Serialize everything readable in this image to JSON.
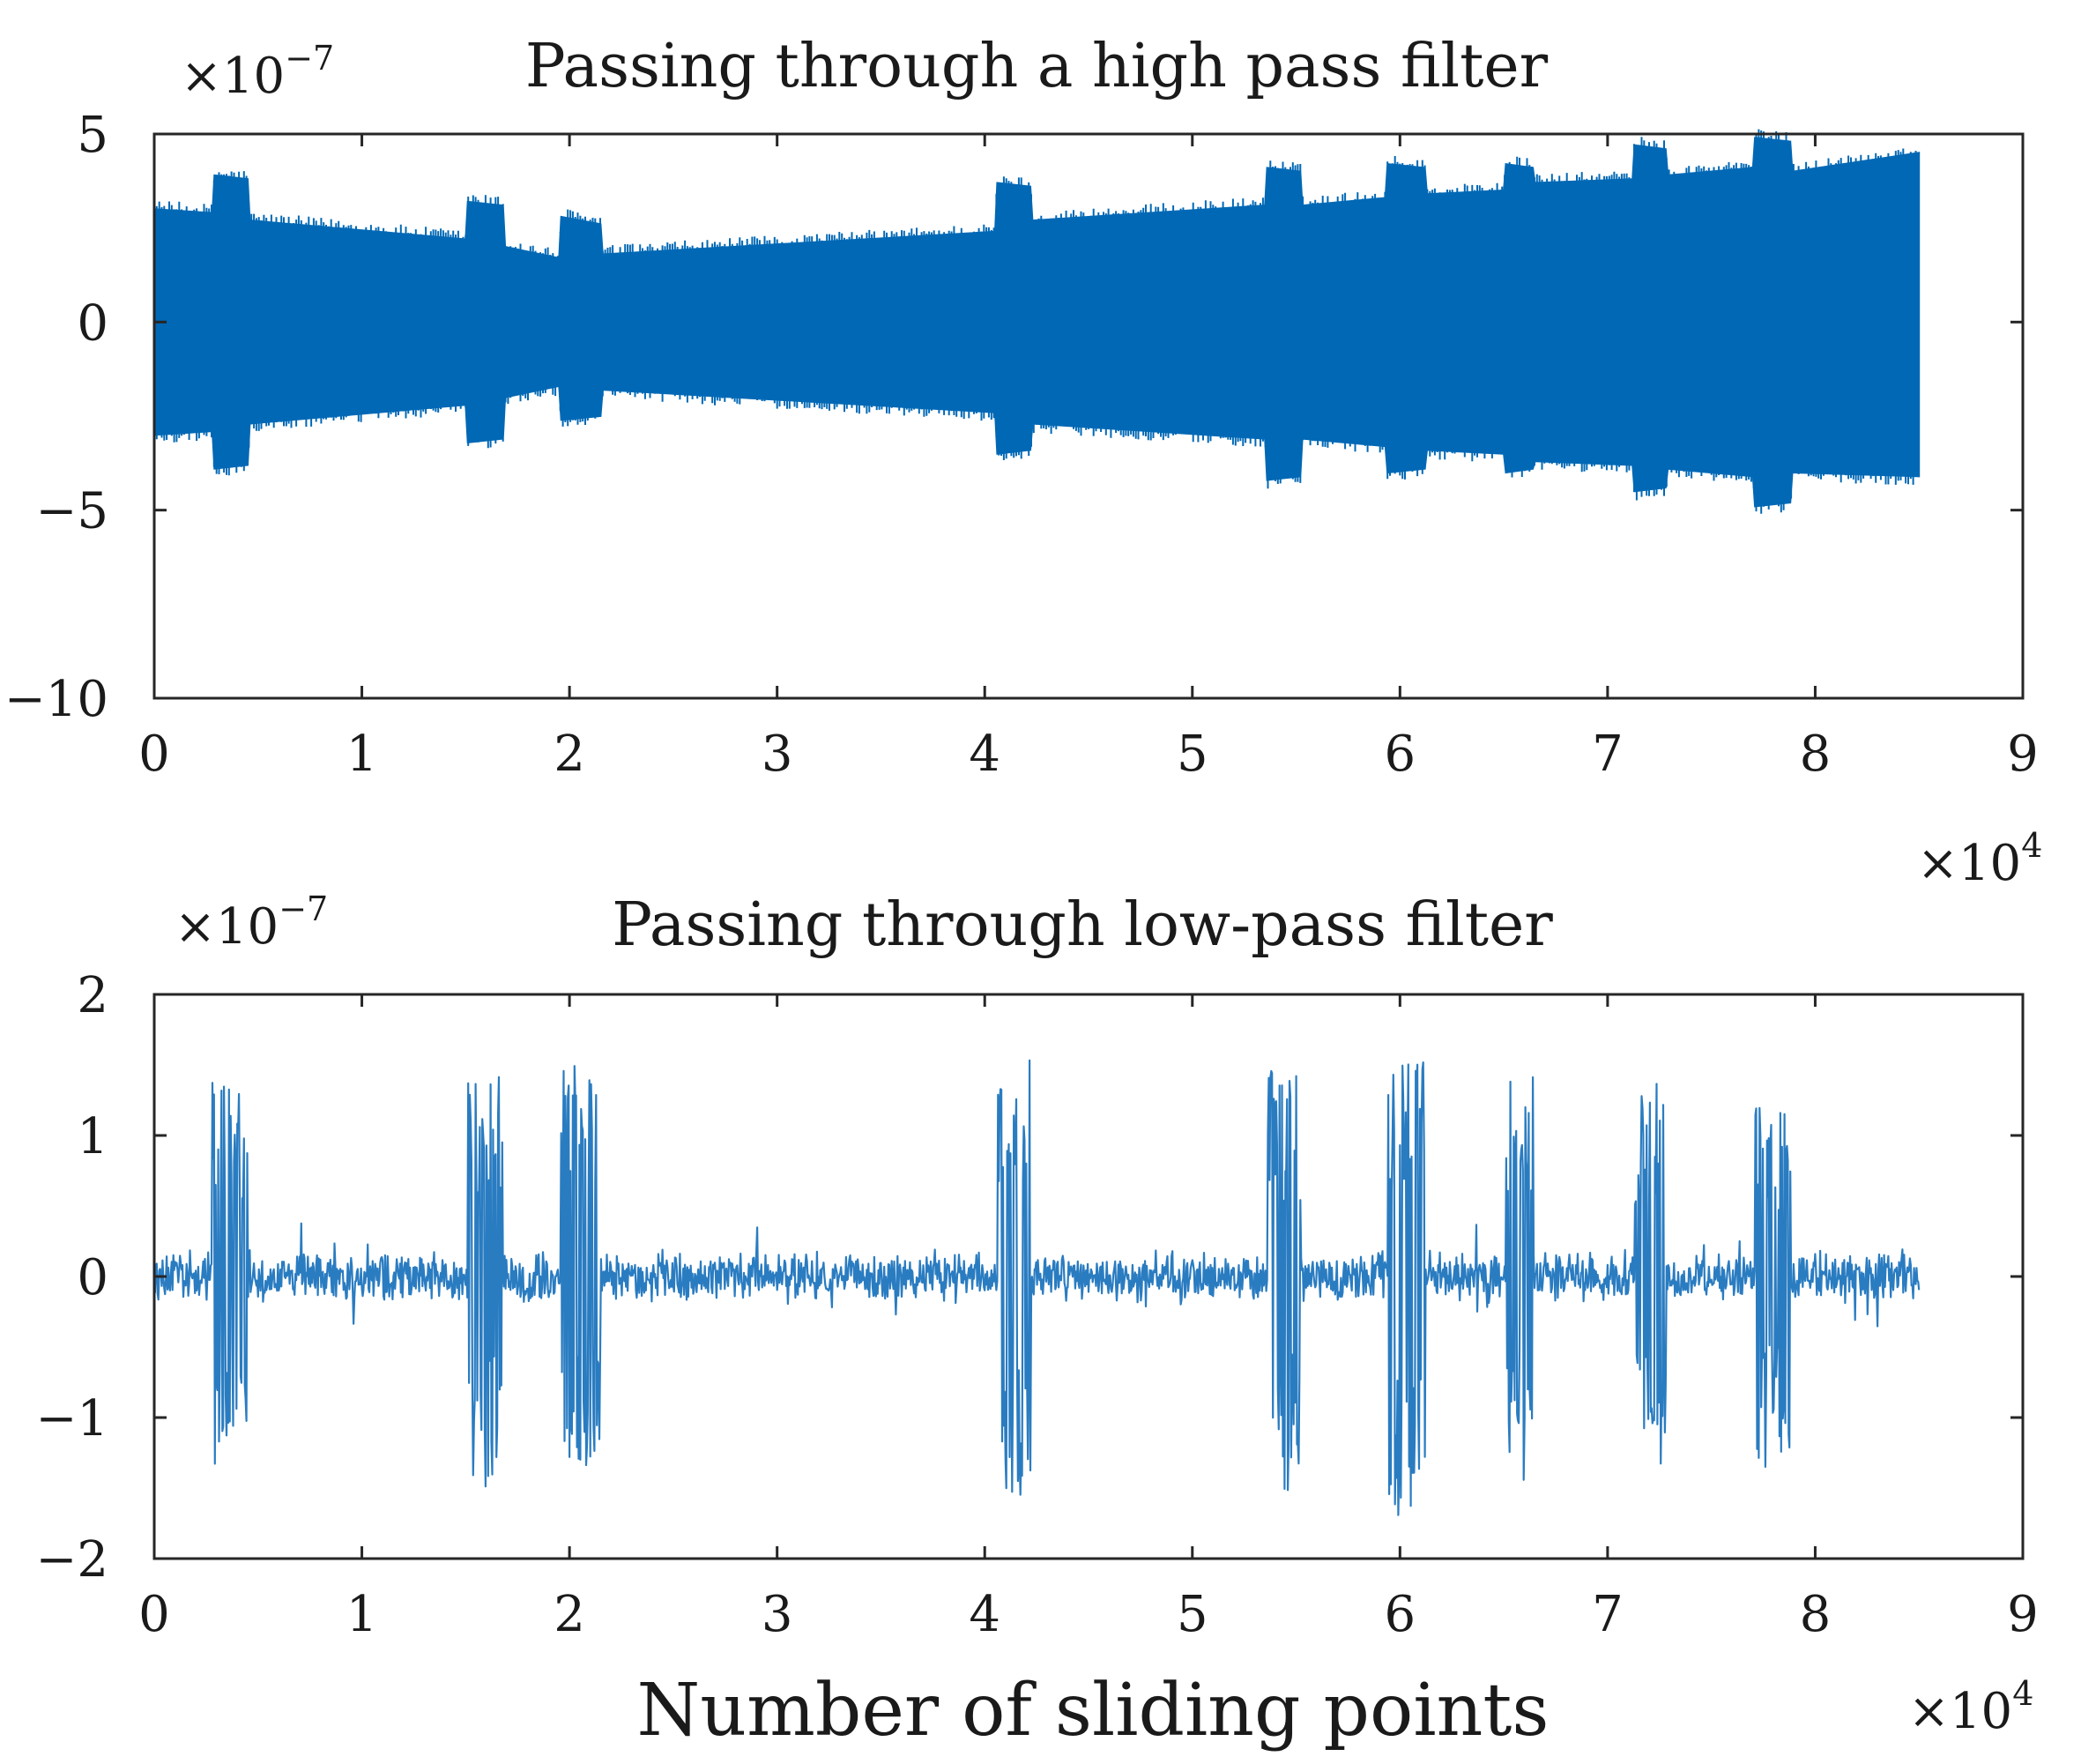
{
  "chart_data": [
    {
      "type": "area",
      "title": "Passing through a high pass filter",
      "y_multiplier": {
        "base": "×10",
        "exp": "−7"
      },
      "x_multiplier": {
        "base": "×10",
        "exp": "4"
      },
      "xlim": [
        0,
        9
      ],
      "ylim": [
        -10,
        5
      ],
      "x_ticks": [
        0,
        1,
        2,
        3,
        4,
        5,
        6,
        7,
        8,
        9
      ],
      "y_ticks": [
        5,
        0,
        -5,
        -10
      ],
      "x_tick_labels": [
        "0",
        "1",
        "2",
        "3",
        "4",
        "5",
        "6",
        "7",
        "8",
        "9"
      ],
      "y_tick_labels": [
        "5",
        "0",
        "−5",
        "−10"
      ],
      "grid": false,
      "series_color": "#0068b5",
      "envelope": {
        "x": [
          0,
          0.28,
          0.29,
          0.45,
          0.46,
          1.5,
          1.51,
          1.68,
          1.69,
          1.95,
          1.96,
          2.15,
          2.16,
          4.05,
          4.06,
          4.22,
          4.23,
          5.35,
          5.36,
          5.52,
          5.53,
          5.93,
          5.94,
          6.12,
          6.13,
          6.5,
          6.51,
          6.64,
          6.65,
          7.12,
          7.13,
          7.28,
          7.29,
          7.7,
          7.71,
          7.88,
          7.89,
          8.5
        ],
        "upper": [
          3.0,
          2.9,
          3.9,
          3.8,
          2.7,
          2.2,
          3.2,
          3.1,
          2.0,
          1.7,
          2.8,
          2.6,
          1.8,
          2.4,
          3.7,
          3.6,
          2.7,
          3.1,
          4.1,
          4.0,
          3.1,
          3.3,
          4.2,
          4.1,
          3.4,
          3.5,
          4.2,
          4.1,
          3.7,
          3.8,
          4.7,
          4.6,
          3.9,
          4.1,
          4.9,
          4.8,
          4.0,
          4.5
        ],
        "lower": [
          -3.0,
          -2.9,
          -3.9,
          -3.8,
          -2.7,
          -2.2,
          -3.2,
          -3.1,
          -2.0,
          -1.7,
          -2.6,
          -2.5,
          -1.8,
          -2.4,
          -3.5,
          -3.4,
          -2.7,
          -3.1,
          -4.2,
          -4.1,
          -3.1,
          -3.3,
          -4.0,
          -3.9,
          -3.4,
          -3.5,
          -4.0,
          -3.9,
          -3.7,
          -3.8,
          -4.5,
          -4.4,
          -3.9,
          -4.1,
          -4.9,
          -4.8,
          -4.0,
          -4.1
        ]
      }
    },
    {
      "type": "line",
      "title": "Passing through low-pass filter",
      "y_multiplier": {
        "base": "×10",
        "exp": "−7"
      },
      "x_multiplier": {
        "base": "×10",
        "exp": "4"
      },
      "xlabel": "Number of sliding points",
      "xlim": [
        0,
        9
      ],
      "ylim": [
        -2,
        2
      ],
      "x_ticks": [
        0,
        1,
        2,
        3,
        4,
        5,
        6,
        7,
        8,
        9
      ],
      "y_ticks": [
        2,
        1,
        0,
        -1,
        -2
      ],
      "x_tick_labels": [
        "0",
        "1",
        "2",
        "3",
        "4",
        "5",
        "6",
        "7",
        "8",
        "9"
      ],
      "y_tick_labels": [
        "2",
        "1",
        "0",
        "−1",
        "−2"
      ],
      "grid": false,
      "series_color": "#2a7cc1",
      "baseline_noise_amplitude": 0.2,
      "bursts": [
        {
          "start": 0.28,
          "end": 0.45,
          "max": 1.4,
          "min": -1.4
        },
        {
          "start": 1.51,
          "end": 1.68,
          "max": 1.5,
          "min": -1.5
        },
        {
          "start": 1.96,
          "end": 2.15,
          "max": 1.55,
          "min": -1.4
        },
        {
          "start": 4.06,
          "end": 4.22,
          "max": 1.55,
          "min": -1.55
        },
        {
          "start": 5.36,
          "end": 5.52,
          "max": 1.5,
          "min": -1.55
        },
        {
          "start": 5.94,
          "end": 6.12,
          "max": 1.55,
          "min": -1.75
        },
        {
          "start": 6.51,
          "end": 6.64,
          "max": 1.45,
          "min": -1.45
        },
        {
          "start": 7.13,
          "end": 7.28,
          "max": 1.4,
          "min": -1.35
        },
        {
          "start": 7.71,
          "end": 7.88,
          "max": 1.25,
          "min": -1.35
        }
      ],
      "x_end": 8.5
    }
  ]
}
